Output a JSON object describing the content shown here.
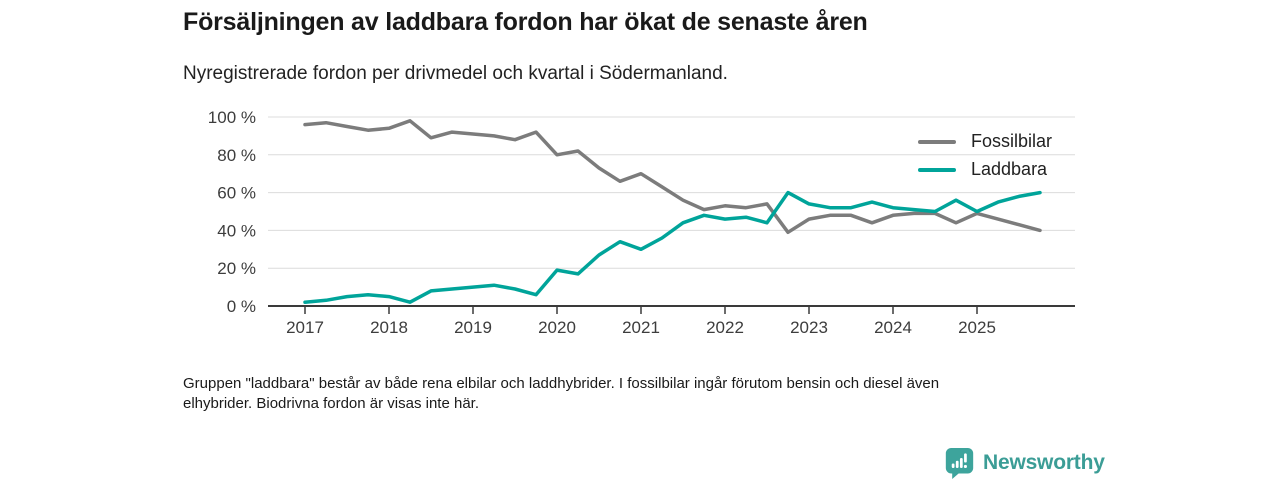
{
  "header": {
    "title": "Försäljningen av laddbara fordon har ökat de senaste åren",
    "subtitle": "Nyregistrerade fordon per drivmedel och kvartal i Södermanland."
  },
  "chart_data": {
    "type": "line",
    "title": "Försäljningen av laddbara fordon har ökat de senaste åren",
    "subtitle": "Nyregistrerade fordon per drivmedel och kvartal i Södermanland.",
    "unit": "%",
    "grid": true,
    "legend_position": "top-right",
    "ylim": [
      0,
      100
    ],
    "yticks": [
      {
        "value": 0,
        "label": "0 %"
      },
      {
        "value": 20,
        "label": "20 %"
      },
      {
        "value": 40,
        "label": "40 %"
      },
      {
        "value": 60,
        "label": "60 %"
      },
      {
        "value": 80,
        "label": "80 %"
      },
      {
        "value": 100,
        "label": "100 %"
      }
    ],
    "xticks": [
      "2017",
      "2018",
      "2019",
      "2020",
      "2021",
      "2022",
      "2023",
      "2024",
      "2025"
    ],
    "x": [
      "2017 Q1",
      "2017 Q2",
      "2017 Q3",
      "2017 Q4",
      "2018 Q1",
      "2018 Q2",
      "2018 Q3",
      "2018 Q4",
      "2019 Q1",
      "2019 Q2",
      "2019 Q3",
      "2019 Q4",
      "2020 Q1",
      "2020 Q2",
      "2020 Q3",
      "2020 Q4",
      "2021 Q1",
      "2021 Q2",
      "2021 Q3",
      "2021 Q4",
      "2022 Q1",
      "2022 Q2",
      "2022 Q3",
      "2022 Q4",
      "2023 Q1",
      "2023 Q2",
      "2023 Q3",
      "2023 Q4",
      "2024 Q1",
      "2024 Q2",
      "2024 Q3",
      "2024 Q4",
      "2025 Q1",
      "2025 Q2",
      "2025 Q3",
      "2025 Q4"
    ],
    "series": [
      {
        "name": "Fossilbilar",
        "color": "#7c7c7c",
        "values": [
          96,
          97,
          95,
          93,
          94,
          98,
          89,
          92,
          91,
          90,
          88,
          92,
          80,
          82,
          73,
          66,
          70,
          63,
          56,
          51,
          53,
          52,
          54,
          39,
          46,
          48,
          48,
          44,
          48,
          49,
          49,
          44,
          49,
          46,
          43,
          40
        ]
      },
      {
        "name": "Laddbara",
        "color": "#00a49a",
        "values": [
          2,
          3,
          5,
          6,
          5,
          2,
          8,
          9,
          10,
          11,
          9,
          6,
          19,
          17,
          27,
          34,
          30,
          36,
          44,
          48,
          46,
          47,
          44,
          60,
          54,
          52,
          52,
          55,
          52,
          51,
          50,
          56,
          50,
          55,
          58,
          60
        ]
      }
    ]
  },
  "legend": {
    "items": [
      {
        "label": "Fossilbilar",
        "color": "#7c7c7c"
      },
      {
        "label": "Laddbara",
        "color": "#00a49a"
      }
    ]
  },
  "footnote": {
    "line1": "Gruppen \"laddbara\" består av både rena elbilar och laddhybrider. I fossilbilar ingår förutom bensin och diesel även",
    "line2": "elhybrider. Biodrivna fordon är visas inte här."
  },
  "logo": {
    "icon": "bar-chart-badge-icon",
    "text": "Newsworthy",
    "text_color": "#3b9d96",
    "badge_color": "#3da49c"
  }
}
